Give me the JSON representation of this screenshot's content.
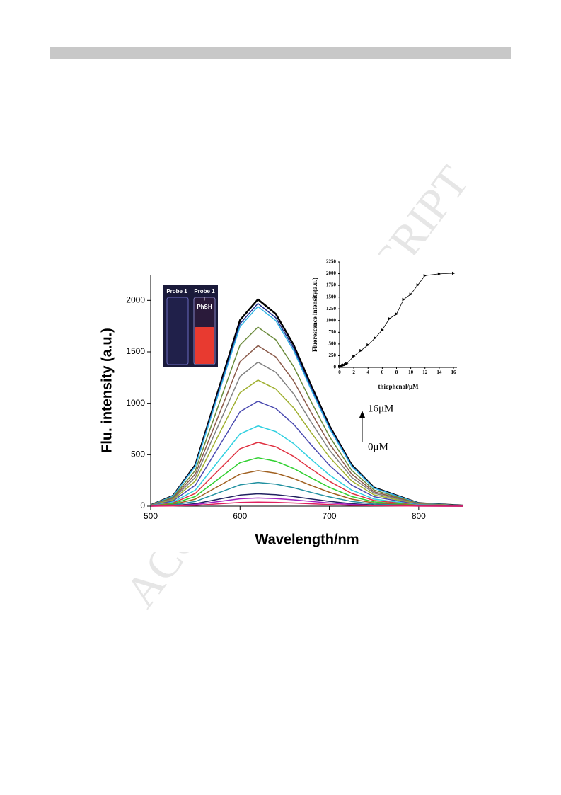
{
  "watermark": "ACCEPTED MANUSCRIPT",
  "inset_photo": {
    "left_label": "Probe 1",
    "right_label": [
      "Probe 1",
      "+",
      "PhSH"
    ]
  },
  "chart_data": [
    {
      "type": "line",
      "xlabel": "Wavelength/nm",
      "ylabel": "Flu. intensity (a.u.)",
      "annotations": [
        "16μM",
        "0μM"
      ],
      "xlim": [
        500,
        850
      ],
      "ylim": [
        0,
        2250
      ],
      "xticks": [
        500,
        600,
        700,
        800
      ],
      "yticks": [
        0,
        500,
        1000,
        1500,
        2000
      ],
      "x": [
        500,
        525,
        550,
        575,
        600,
        620,
        640,
        660,
        680,
        700,
        725,
        750,
        800,
        850
      ],
      "series": [
        {
          "color": "#000000",
          "values": [
            10,
            101,
            402,
            1106,
            1809,
            2010,
            1869,
            1568,
            1166,
            784,
            402,
            181,
            30,
            6
          ]
        },
        {
          "color": "#1f2f8f",
          "values": [
            10,
            99,
            394,
            1084,
            1773,
            1970,
            1832,
            1537,
            1143,
            768,
            394,
            177,
            30,
            6
          ]
        },
        {
          "color": "#33b5e5",
          "values": [
            10,
            97,
            388,
            1067,
            1746,
            1940,
            1804,
            1513,
            1125,
            757,
            388,
            175,
            29,
            6
          ]
        },
        {
          "color": "#6a8a3a",
          "values": [
            9,
            87,
            348,
            957,
            1566,
            1740,
            1618,
            1357,
            1009,
            679,
            348,
            157,
            26,
            5
          ]
        },
        {
          "color": "#8a5a4a",
          "values": [
            8,
            78,
            312,
            858,
            1404,
            1560,
            1451,
            1217,
            905,
            608,
            312,
            140,
            23,
            5
          ]
        },
        {
          "color": "#808080",
          "values": [
            7,
            70,
            280,
            770,
            1260,
            1400,
            1302,
            1092,
            812,
            546,
            280,
            126,
            21,
            4
          ]
        },
        {
          "color": "#a0b030",
          "values": [
            6,
            61,
            245,
            674,
            1103,
            1225,
            1139,
            956,
            711,
            478,
            245,
            110,
            18,
            4
          ]
        },
        {
          "color": "#4a4ab0",
          "values": [
            5,
            51,
            204,
            561,
            918,
            1020,
            949,
            796,
            592,
            398,
            204,
            92,
            15,
            3
          ]
        },
        {
          "color": "#30d0e0",
          "values": [
            4,
            39,
            156,
            429,
            702,
            780,
            725,
            608,
            452,
            304,
            156,
            70,
            12,
            2
          ]
        },
        {
          "color": "#e03040",
          "values": [
            3,
            31,
            124,
            341,
            558,
            620,
            577,
            484,
            360,
            242,
            124,
            56,
            9,
            2
          ]
        },
        {
          "color": "#30d030",
          "values": [
            2,
            24,
            94,
            259,
            423,
            470,
            437,
            367,
            273,
            183,
            94,
            42,
            7,
            1
          ]
        },
        {
          "color": "#a06020",
          "values": [
            2,
            17,
            69,
            190,
            311,
            345,
            321,
            269,
            200,
            135,
            69,
            31,
            5,
            1
          ]
        },
        {
          "color": "#2090a0",
          "values": [
            1,
            12,
            46,
            127,
            207,
            230,
            214,
            179,
            133,
            90,
            46,
            21,
            3,
            1
          ]
        },
        {
          "color": "#202060",
          "values": [
            1,
            6,
            24,
            66,
            108,
            120,
            112,
            94,
            70,
            47,
            24,
            11,
            2,
            0
          ]
        },
        {
          "color": "#a020c0",
          "values": [
            0,
            4,
            16,
            44,
            72,
            80,
            74,
            62,
            46,
            31,
            16,
            7,
            1,
            0
          ]
        },
        {
          "color": "#e02060",
          "values": [
            0,
            2,
            8,
            22,
            36,
            40,
            37,
            31,
            23,
            16,
            8,
            4,
            1,
            0
          ]
        }
      ]
    },
    {
      "type": "line",
      "xlabel": "thiophenol/μM",
      "ylabel": "Fluorescence intensity(a.u.)",
      "xlim": [
        0,
        16.5
      ],
      "ylim": [
        0,
        2250
      ],
      "xticks": [
        0,
        2,
        4,
        6,
        8,
        10,
        12,
        14,
        16
      ],
      "yticks": [
        0,
        250,
        500,
        750,
        1000,
        1250,
        1500,
        1750,
        2000,
        2250
      ],
      "x": [
        0,
        0.2,
        0.4,
        0.6,
        0.8,
        1,
        2,
        3,
        4,
        5,
        6,
        7,
        8,
        9,
        10,
        11,
        12,
        14,
        16
      ],
      "series": [
        {
          "color": "#000000",
          "values": [
            20,
            30,
            40,
            50,
            60,
            80,
            240,
            360,
            480,
            630,
            800,
            1040,
            1140,
            1450,
            1560,
            1760,
            1960,
            1995,
            2010
          ]
        }
      ]
    }
  ]
}
